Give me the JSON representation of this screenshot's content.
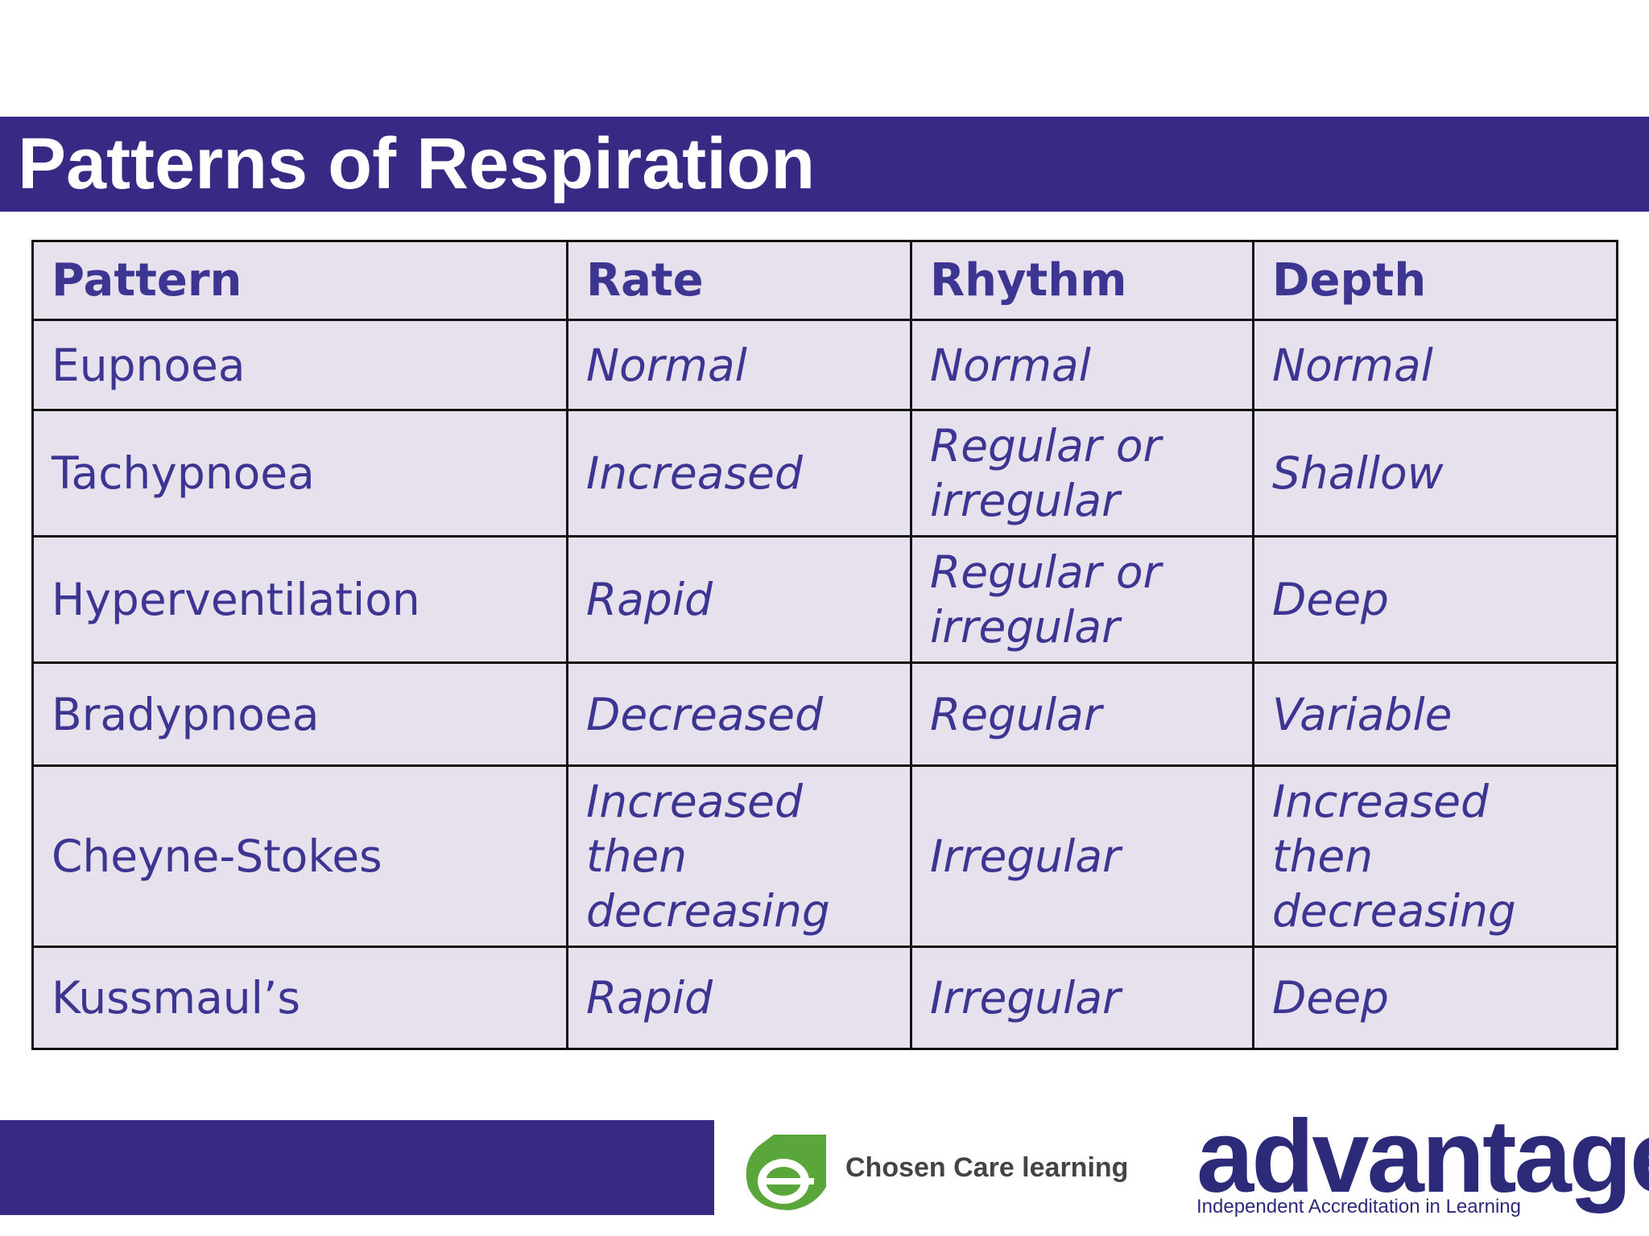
{
  "header": {
    "title": "Patterns of Respiration"
  },
  "table": {
    "columns": [
      "Pattern",
      "Rate",
      "Rhythm",
      "Depth"
    ],
    "rows": [
      [
        "Eupnoea",
        "Normal",
        "Normal",
        "Normal"
      ],
      [
        "Tachypnoea",
        "Increased",
        "Regular or irregular",
        "Shallow"
      ],
      [
        "Hyperventilation",
        "Rapid",
        "Regular or irregular",
        "Deep"
      ],
      [
        "Bradypnoea",
        "Decreased",
        "Regular",
        "Variable"
      ],
      [
        "Cheyne-Stokes",
        "Increased then decreasing",
        "Irregular",
        "Increased then decreasing"
      ],
      [
        "Kussmaul’s",
        "Rapid",
        "Irregular",
        "Deep"
      ]
    ]
  },
  "footer": {
    "logo1": "Chosen Care learning",
    "logo2": "advantage",
    "logo2_tagline": "Independent Accreditation in Learning"
  }
}
